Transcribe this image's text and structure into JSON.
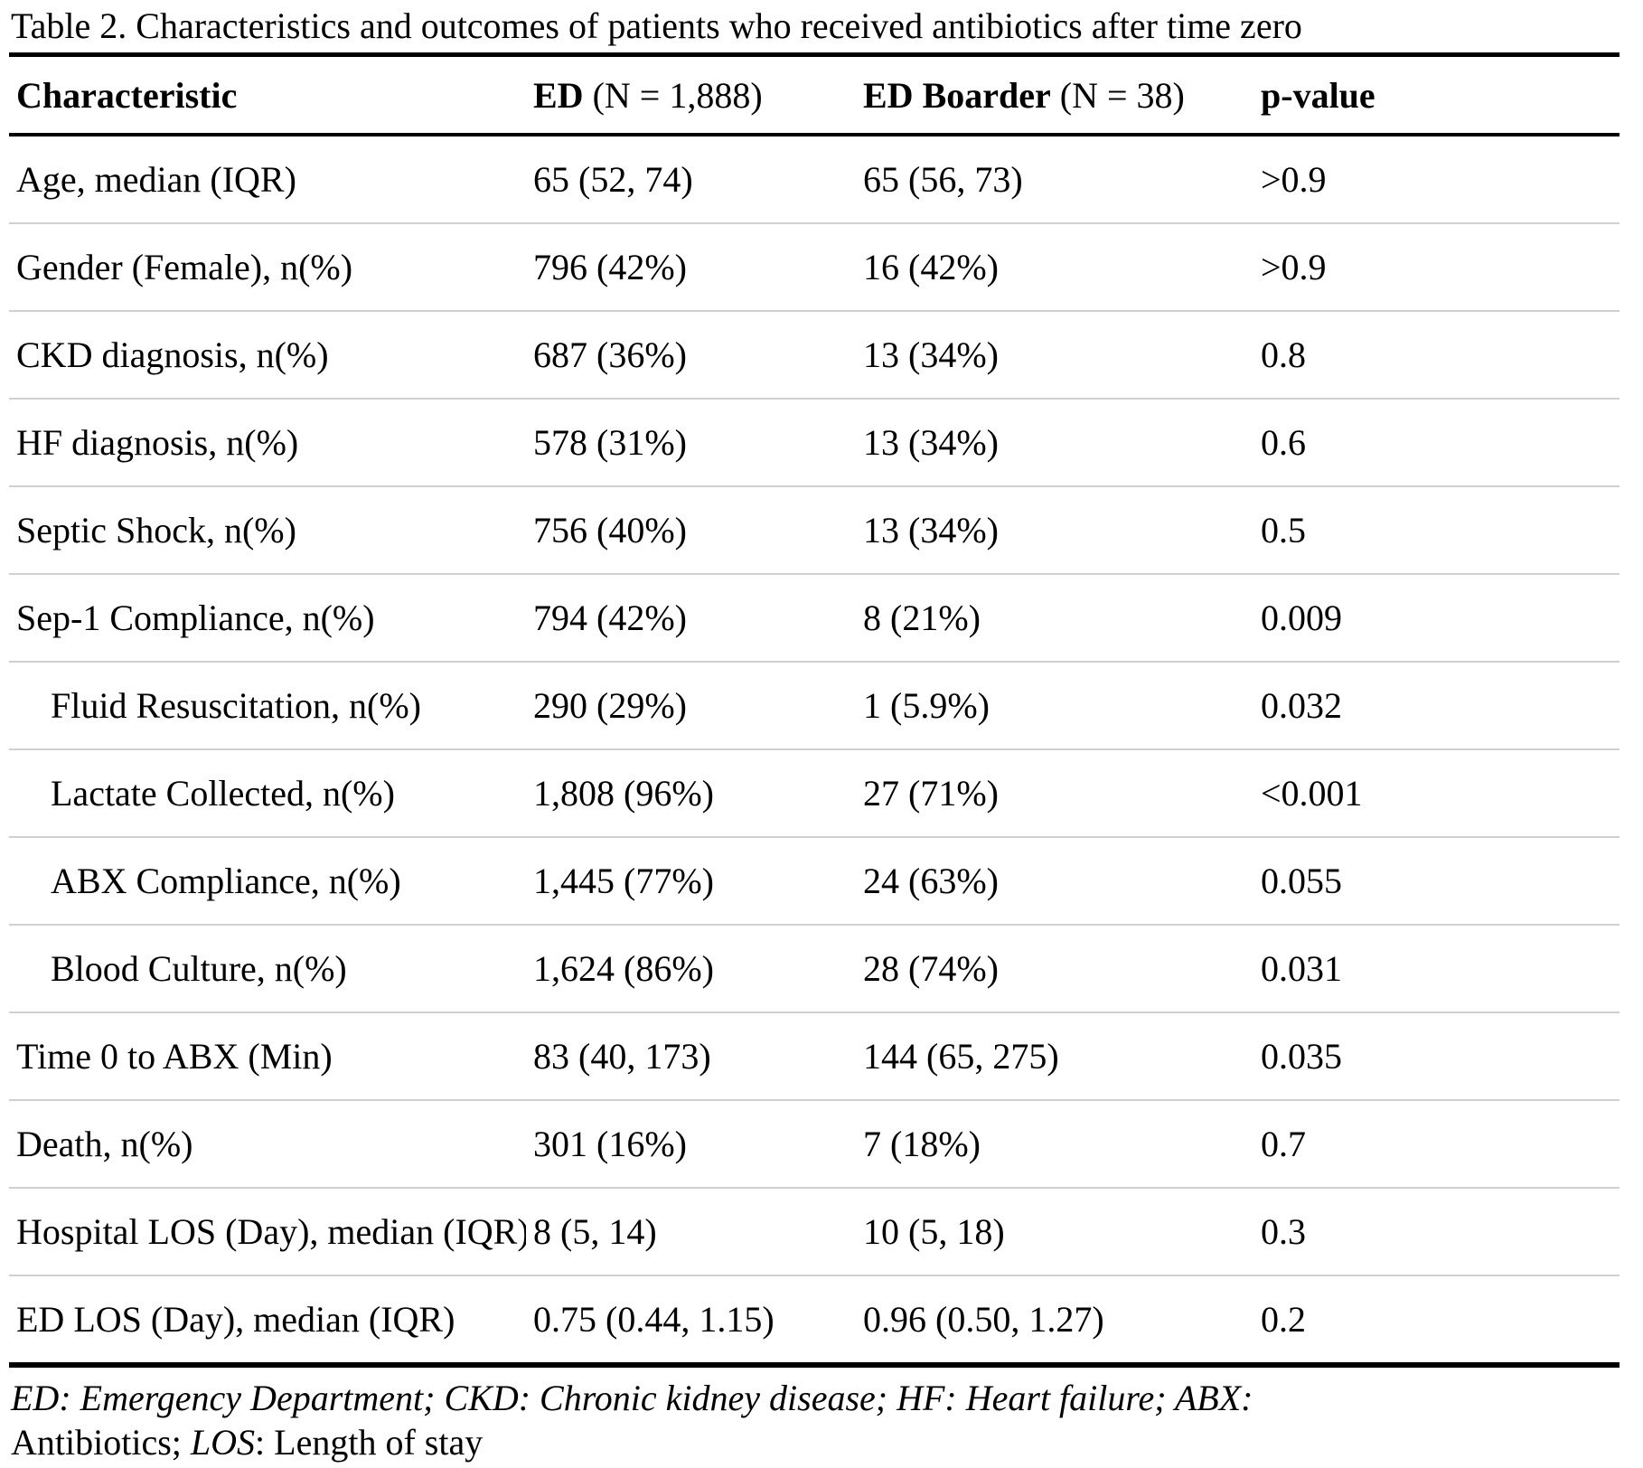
{
  "title": "Table 2. Characteristics and outcomes of patients who received antibiotics after time zero",
  "table": {
    "columns": {
      "characteristic": "Characteristic",
      "ed_bold": "ED",
      "ed_rest": " (N = 1,888)",
      "boarder_bold": "ED Boarder",
      "boarder_rest": " (N = 38)",
      "pvalue": "p-value"
    },
    "rows": [
      {
        "label": "Age, median (IQR)",
        "ed": "65 (52, 74)",
        "boarder": "65 (56, 73)",
        "p": ">0.9",
        "indent": false
      },
      {
        "label": "Gender (Female), n(%)",
        "ed": "796 (42%)",
        "boarder": "16 (42%)",
        "p": ">0.9",
        "indent": false
      },
      {
        "label": "CKD diagnosis, n(%)",
        "ed": "687 (36%)",
        "boarder": "13 (34%)",
        "p": "0.8",
        "indent": false
      },
      {
        "label": "HF diagnosis, n(%)",
        "ed": "578 (31%)",
        "boarder": "13 (34%)",
        "p": "0.6",
        "indent": false
      },
      {
        "label": "Septic Shock, n(%)",
        "ed": "756 (40%)",
        "boarder": "13 (34%)",
        "p": "0.5",
        "indent": false
      },
      {
        "label": "Sep-1 Compliance, n(%)",
        "ed": "794 (42%)",
        "boarder": "8 (21%)",
        "p": "0.009",
        "indent": false
      },
      {
        "label": "Fluid Resuscitation, n(%)",
        "ed": "290 (29%)",
        "boarder": "1 (5.9%)",
        "p": "0.032",
        "indent": true
      },
      {
        "label": "Lactate Collected, n(%)",
        "ed": "1,808 (96%)",
        "boarder": "27 (71%)",
        "p": "<0.001",
        "indent": true
      },
      {
        "label": "ABX Compliance, n(%)",
        "ed": "1,445 (77%)",
        "boarder": "24 (63%)",
        "p": "0.055",
        "indent": true
      },
      {
        "label": "Blood Culture, n(%)",
        "ed": "1,624 (86%)",
        "boarder": "28 (74%)",
        "p": "0.031",
        "indent": true
      },
      {
        "label": "Time 0 to ABX (Min)",
        "ed": "83 (40, 173)",
        "boarder": "144 (65, 275)",
        "p": "0.035",
        "indent": false
      },
      {
        "label": "Death, n(%)",
        "ed": "301 (16%)",
        "boarder": "7 (18%)",
        "p": "0.7",
        "indent": false
      },
      {
        "label": "Hospital LOS (Day), median (IQR)",
        "ed": "8 (5, 14)",
        "boarder": "10 (5, 18)",
        "p": "0.3",
        "indent": false
      },
      {
        "label": "ED LOS (Day), median (IQR)",
        "ed": "0.75 (0.44, 1.15)",
        "boarder": "0.96 (0.50, 1.27)",
        "p": "0.2",
        "indent": false
      }
    ]
  },
  "footnote": {
    "line1_italic": "ED: Emergency Department; CKD: Chronic kidney disease; HF: Heart failure; ABX:",
    "line2_pre": "Antibiotics; ",
    "line2_italic": "LOS",
    "line2_post": ": Length of stay"
  }
}
